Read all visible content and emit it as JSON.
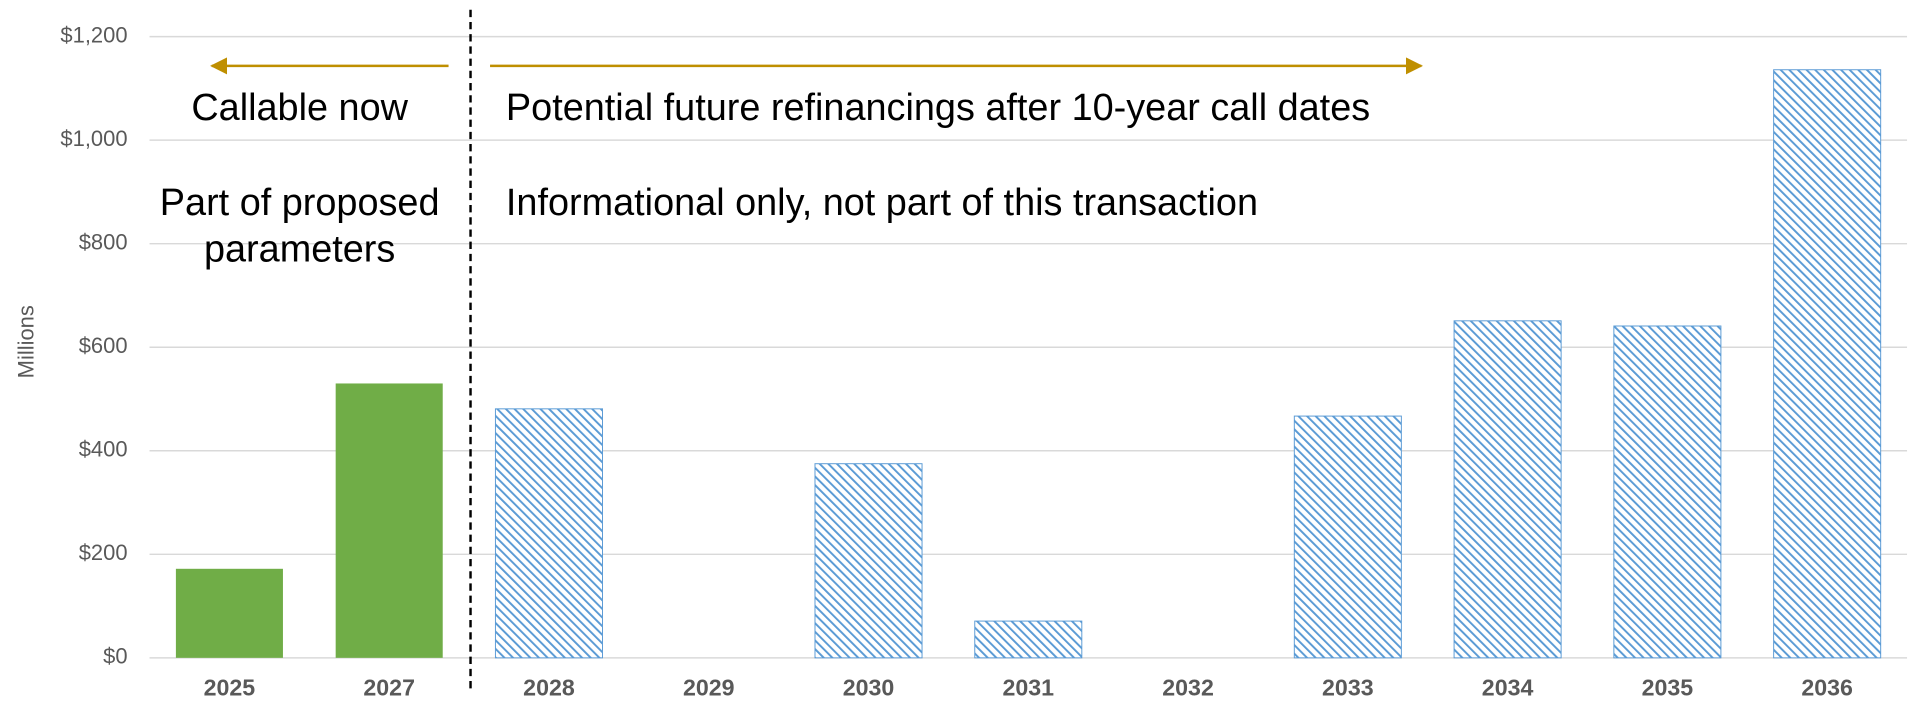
{
  "chart_data": {
    "type": "bar",
    "y_label": "Millions",
    "categories": [
      "2025",
      "2027",
      "2028",
      "2029",
      "2030",
      "2031",
      "2032",
      "2033",
      "2034",
      "2035",
      "2036"
    ],
    "values": [
      172,
      530,
      481,
      0,
      375,
      71,
      0,
      467,
      651,
      641,
      1136
    ],
    "colors": [
      "#70ad47",
      "#70ad47",
      "#5b9bd5",
      "#5b9bd5",
      "#5b9bd5",
      "#5b9bd5",
      "#5b9bd5",
      "#5b9bd5",
      "#5b9bd5",
      "#5b9bd5",
      "#5b9bd5"
    ],
    "hatched": [
      false,
      false,
      true,
      true,
      true,
      true,
      true,
      true,
      true,
      true,
      true
    ],
    "ylim": [
      0,
      1200
    ],
    "yticks": [
      {
        "value": 0,
        "label": "$0"
      },
      {
        "value": 200,
        "label": "$200"
      },
      {
        "value": 400,
        "label": "$400"
      },
      {
        "value": 600,
        "label": "$600"
      },
      {
        "value": 800,
        "label": "$800"
      },
      {
        "value": 1000,
        "label": "$1,000"
      },
      {
        "value": 1200,
        "label": "$1,200"
      }
    ],
    "grid": true,
    "annotations": [
      "Callable now",
      "Part of proposed",
      "parameters",
      "Potential future refinancings after 10-year call dates",
      "Informational only, not part of this transaction"
    ]
  }
}
